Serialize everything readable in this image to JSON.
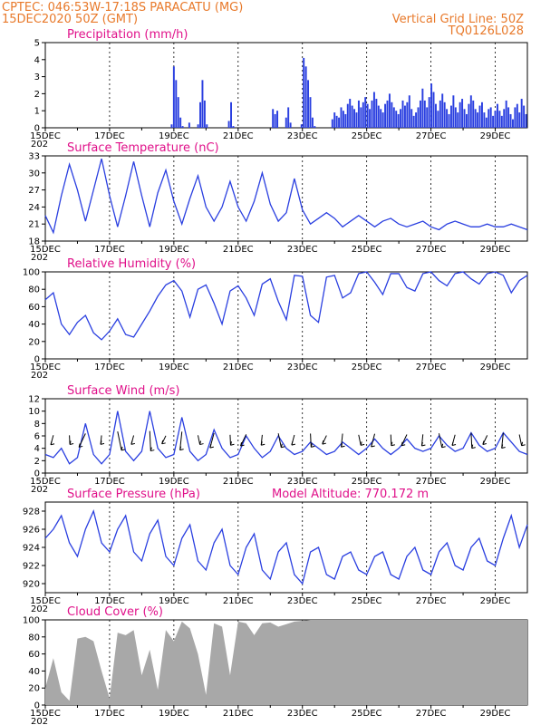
{
  "header": {
    "line1_left": "CPTEC:   046:53W-17:18S   PARACATU (MG)",
    "line2_left": "15DEC2020 50Z (GMT)",
    "line2_right": "Vertical Grid Line: 50Z",
    "line3_right": "TQ0126L028"
  },
  "x_axis": {
    "ticks": [
      "15DEC",
      "17DEC",
      "19DEC",
      "21DEC",
      "23DEC",
      "25DEC",
      "27DEC",
      "29DEC"
    ],
    "year_stub": "202"
  },
  "colors": {
    "series": "#2a3fe0",
    "cloud": "#a8a8a8",
    "title": "#e0118a",
    "header": "#e8792a"
  },
  "chart_data": [
    {
      "type": "bar",
      "title": "Precipitation (mm/h)",
      "ylim": [
        0,
        5
      ],
      "yticks": [
        0,
        1,
        2,
        3,
        4,
        5
      ],
      "grid": true,
      "series": [
        {
          "values": [
            0,
            0,
            0,
            0,
            0,
            0,
            0,
            0,
            0,
            0,
            0,
            0,
            0,
            0,
            0,
            0,
            0,
            0,
            0,
            0,
            0,
            0,
            0,
            0,
            0,
            0,
            0,
            0,
            0,
            0,
            0,
            0,
            0,
            0,
            0,
            0,
            0,
            0,
            0,
            0,
            0,
            0,
            0,
            0,
            0,
            0,
            0,
            0,
            0,
            0,
            0,
            0,
            0,
            0,
            0,
            0,
            0,
            0.2,
            3.6,
            2.8,
            1.8,
            0.6,
            0.1,
            0,
            0,
            0.3,
            0,
            0,
            0,
            0.2,
            1.5,
            2.8,
            1.6,
            0.2,
            0,
            0,
            0,
            0,
            0,
            0,
            0,
            0,
            0,
            0.4,
            1.5,
            0.1,
            0,
            0,
            0,
            0,
            0,
            0,
            0,
            0,
            0,
            0,
            0,
            0,
            0,
            0,
            0,
            0,
            0,
            1.1,
            0.8,
            1.0,
            0,
            0,
            0,
            0.6,
            1.2,
            0.3,
            0,
            0,
            0,
            0,
            0.2,
            4.1,
            3.6,
            2.8,
            1.8,
            0.6,
            0.1,
            0,
            0,
            0,
            0,
            0,
            0,
            0,
            0.5,
            0.9,
            0.7,
            0.6,
            1.2,
            1.0,
            0.8,
            1.4,
            1.7,
            1.3,
            1.1,
            0.9,
            1.6,
            1.2,
            1.5,
            1.8,
            1.4,
            1.1,
            1.6,
            2.1,
            1.7,
            1.3,
            1.1,
            0.9,
            1.4,
            1.6,
            2.0,
            1.5,
            1.2,
            1.0,
            0.8,
            1.1,
            1.6,
            1.3,
            1.5,
            1.9,
            1.1,
            0.7,
            0.9,
            1.2,
            1.6,
            2.3,
            1.6,
            1.2,
            1.8,
            2.6,
            2.1,
            1.4,
            1.0,
            1.6,
            2.0,
            1.5,
            1.1,
            0.8,
            1.3,
            1.9,
            1.2,
            0.9,
            1.5,
            1.7,
            1.1,
            0.8,
            1.4,
            1.9,
            1.6,
            1.1,
            0.9,
            1.3,
            1.5,
            0.9,
            0.6,
            1.1,
            1.2,
            0.7,
            1.0,
            1.4,
            1.0,
            0.7,
            1.1,
            1.6,
            1.2,
            0.8,
            0.5,
            1.2,
            1.4,
            0.9,
            1.7,
            1.3,
            0.8
          ]
        }
      ]
    },
    {
      "type": "line",
      "title": "Surface Temperature (nC)",
      "ylim": [
        18,
        33
      ],
      "yticks": [
        18,
        21,
        24,
        27,
        30,
        33
      ],
      "grid": true,
      "series": [
        {
          "x": [
            0,
            0.25,
            0.5,
            0.75,
            1,
            1.25,
            1.5,
            1.75,
            2,
            2.25,
            2.5,
            2.75,
            3,
            3.25,
            3.5,
            3.75,
            4,
            4.25,
            4.5,
            4.75,
            5,
            5.25,
            5.5,
            5.75,
            6,
            6.25,
            6.5,
            6.75,
            7,
            7.25,
            7.5,
            7.75,
            8,
            8.25,
            8.5,
            8.75,
            9,
            9.25,
            9.5,
            9.75,
            10,
            10.25,
            10.5,
            10.75,
            11,
            11.25,
            11.5,
            11.75,
            12,
            12.25,
            12.5,
            12.75,
            13,
            13.25,
            13.5,
            13.75,
            14,
            14.25,
            14.5,
            14.75,
            15
          ],
          "values": [
            22.5,
            19.5,
            26,
            31.5,
            27,
            21.5,
            27,
            32.5,
            26,
            20.5,
            26,
            32,
            26,
            20.5,
            26.5,
            30.5,
            25,
            21,
            25.5,
            29.5,
            24,
            21.5,
            24,
            28.5,
            24,
            21.5,
            25,
            30,
            24.5,
            21.5,
            23,
            29,
            23.5,
            21,
            22,
            23,
            22,
            20.5,
            21.5,
            22.5,
            21.5,
            20.5,
            21.5,
            22,
            21,
            20.5,
            21,
            21.5,
            20.5,
            20,
            21,
            21.5,
            21,
            20.5,
            20.5,
            21,
            20.5,
            20.5,
            21,
            20.5,
            20
          ]
        }
      ]
    },
    {
      "type": "line",
      "title": "Relative Humidity (%)",
      "ylim": [
        0,
        100
      ],
      "yticks": [
        0,
        20,
        40,
        60,
        80,
        100
      ],
      "grid": true,
      "series": [
        {
          "x": [
            0,
            0.25,
            0.5,
            0.75,
            1,
            1.25,
            1.5,
            1.75,
            2,
            2.25,
            2.5,
            2.75,
            3,
            3.25,
            3.5,
            3.75,
            4,
            4.25,
            4.5,
            4.75,
            5,
            5.25,
            5.5,
            5.75,
            6,
            6.25,
            6.5,
            6.75,
            7,
            7.25,
            7.5,
            7.75,
            8,
            8.25,
            8.5,
            8.75,
            9,
            9.25,
            9.5,
            9.75,
            10,
            10.25,
            10.5,
            10.75,
            11,
            11.25,
            11.5,
            11.75,
            12,
            12.25,
            12.5,
            12.75,
            13,
            13.25,
            13.5,
            13.75,
            14,
            14.25,
            14.5,
            14.75,
            15
          ],
          "values": [
            68,
            76,
            40,
            28,
            42,
            50,
            30,
            22,
            32,
            46,
            28,
            25,
            40,
            55,
            72,
            85,
            90,
            78,
            48,
            80,
            85,
            64,
            40,
            78,
            84,
            70,
            50,
            86,
            92,
            66,
            45,
            96,
            95,
            50,
            42,
            94,
            96,
            70,
            76,
            98,
            100,
            88,
            74,
            98,
            98,
            82,
            78,
            98,
            100,
            90,
            84,
            98,
            100,
            92,
            86,
            98,
            100,
            96,
            76,
            90,
            96
          ]
        }
      ]
    },
    {
      "type": "line",
      "title": "Surface Wind (m/s)",
      "ylim": [
        0,
        12
      ],
      "yticks": [
        0,
        2,
        4,
        6,
        8,
        10,
        12
      ],
      "grid": true,
      "series": [
        {
          "x": [
            0,
            0.25,
            0.5,
            0.75,
            1,
            1.25,
            1.5,
            1.75,
            2,
            2.25,
            2.5,
            2.75,
            3,
            3.25,
            3.5,
            3.75,
            4,
            4.25,
            4.5,
            4.75,
            5,
            5.25,
            5.5,
            5.75,
            6,
            6.25,
            6.5,
            6.75,
            7,
            7.25,
            7.5,
            7.75,
            8,
            8.25,
            8.5,
            8.75,
            9,
            9.25,
            9.5,
            9.75,
            10,
            10.25,
            10.5,
            10.75,
            11,
            11.25,
            11.5,
            11.75,
            12,
            12.25,
            12.5,
            12.75,
            13,
            13.25,
            13.5,
            13.75,
            14,
            14.25,
            14.5,
            14.75,
            15
          ],
          "values": [
            3,
            2.5,
            4,
            1.5,
            2.5,
            8,
            3,
            1.5,
            3,
            10,
            3.5,
            2,
            3.5,
            10,
            4,
            2.5,
            3,
            9,
            3.5,
            2,
            3,
            7,
            4,
            2.5,
            3,
            6,
            4,
            2.5,
            3.5,
            6,
            4,
            3,
            3.5,
            5,
            4,
            3,
            3.5,
            5,
            4,
            3,
            4,
            5.5,
            4,
            3,
            4,
            5.5,
            4,
            3.5,
            4,
            6,
            4.5,
            3.5,
            4,
            6.5,
            4.5,
            3.5,
            4,
            6.5,
            5,
            3.5,
            3
          ]
        }
      ]
    },
    {
      "type": "line",
      "title": "Surface Pressure (hPa)",
      "annotation": "Model Altitude: 770.172 m",
      "ylim": [
        919,
        929
      ],
      "yticks": [
        920,
        922,
        924,
        926,
        928
      ],
      "grid": true,
      "series": [
        {
          "x": [
            0,
            0.25,
            0.5,
            0.75,
            1,
            1.25,
            1.5,
            1.75,
            2,
            2.25,
            2.5,
            2.75,
            3,
            3.25,
            3.5,
            3.75,
            4,
            4.25,
            4.5,
            4.75,
            5,
            5.25,
            5.5,
            5.75,
            6,
            6.25,
            6.5,
            6.75,
            7,
            7.25,
            7.5,
            7.75,
            8,
            8.25,
            8.5,
            8.75,
            9,
            9.25,
            9.5,
            9.75,
            10,
            10.25,
            10.5,
            10.75,
            11,
            11.25,
            11.5,
            11.75,
            12,
            12.25,
            12.5,
            12.75,
            13,
            13.25,
            13.5,
            13.75,
            14,
            14.25,
            14.5,
            14.75,
            15
          ],
          "values": [
            925,
            926,
            927.5,
            924.5,
            923,
            926,
            928,
            924.5,
            923.5,
            926,
            927.5,
            923.5,
            922.5,
            925.5,
            927,
            923,
            922,
            925,
            926.5,
            922.5,
            921.5,
            924.5,
            926,
            922,
            921,
            924,
            925.5,
            921.5,
            920.5,
            923.5,
            924.5,
            921,
            920,
            923.5,
            924,
            921,
            920.5,
            923,
            923.5,
            921.5,
            921,
            923,
            923.5,
            921,
            920.5,
            923,
            924,
            921.5,
            921,
            923.5,
            924.5,
            922,
            921.5,
            924,
            925,
            922.5,
            922,
            925,
            927.5,
            924,
            926.5
          ]
        }
      ]
    },
    {
      "type": "area",
      "title": "Cloud Cover (%)",
      "ylim": [
        0,
        100
      ],
      "yticks": [
        0,
        20,
        40,
        60,
        80,
        100
      ],
      "grid": true,
      "series": [
        {
          "x": [
            0,
            0.25,
            0.5,
            0.75,
            1,
            1.25,
            1.5,
            1.75,
            2,
            2.25,
            2.5,
            2.75,
            3,
            3.25,
            3.5,
            3.75,
            4,
            4.25,
            4.5,
            4.75,
            5,
            5.25,
            5.5,
            5.75,
            6,
            6.25,
            6.5,
            6.75,
            7,
            7.25,
            7.5,
            7.75,
            8,
            8.25,
            8.5,
            8.75,
            9,
            9.25,
            9.5,
            9.75,
            10,
            10.25,
            10.5,
            10.75,
            11,
            11.25,
            11.5,
            11.75,
            12,
            12.25,
            12.5,
            12.75,
            13,
            13.25,
            13.5,
            13.75,
            14,
            14.25,
            14.5,
            14.75,
            15
          ],
          "values": [
            20,
            55,
            15,
            5,
            78,
            80,
            75,
            40,
            8,
            85,
            82,
            88,
            35,
            65,
            18,
            88,
            75,
            98,
            90,
            60,
            12,
            96,
            92,
            35,
            98,
            96,
            82,
            96,
            97,
            92,
            95,
            98,
            99,
            100,
            100,
            100,
            100,
            100,
            100,
            100,
            100,
            100,
            100,
            100,
            100,
            100,
            100,
            100,
            100,
            100,
            100,
            100,
            100,
            100,
            100,
            100,
            100,
            100,
            100,
            100,
            100
          ]
        }
      ]
    }
  ]
}
